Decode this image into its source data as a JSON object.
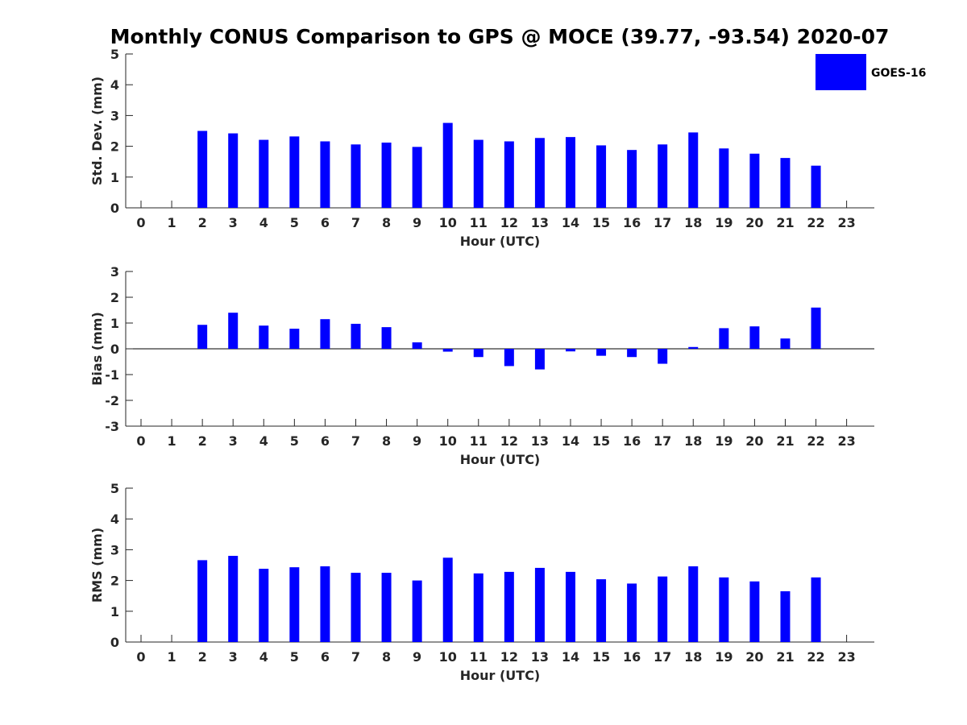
{
  "chart_data": {
    "title": "Monthly CONUS Comparison to GPS @ MOCE (39.77, -93.54) 2020-07",
    "bar_color": "#0000ff",
    "legend": {
      "label": "GOES-16",
      "placement": "top-right"
    },
    "panels": [
      {
        "type": "bar",
        "ylabel": "Std. Dev. (mm)",
        "xlabel": "Hour (UTC)",
        "ylim": [
          0,
          5
        ],
        "yticks": [
          0,
          1,
          2,
          3,
          4,
          5
        ],
        "categories": [
          0,
          1,
          2,
          3,
          4,
          5,
          6,
          7,
          8,
          9,
          10,
          11,
          12,
          13,
          14,
          15,
          16,
          17,
          18,
          19,
          20,
          21,
          22,
          23
        ],
        "series": [
          {
            "name": "GOES-16",
            "values": [
              null,
              null,
              2.5,
              2.42,
              2.21,
              2.32,
              2.16,
              2.06,
              2.12,
              1.98,
              2.76,
              2.21,
              2.16,
              2.27,
              2.3,
              2.03,
              1.88,
              2.06,
              2.45,
              1.93,
              1.76,
              1.62,
              1.37,
              null
            ]
          }
        ],
        "zero_line": false
      },
      {
        "type": "bar",
        "ylabel": "Bias (mm)",
        "xlabel": "Hour (UTC)",
        "ylim": [
          -3,
          3
        ],
        "yticks": [
          -3,
          -2,
          -1,
          0,
          1,
          2,
          3
        ],
        "categories": [
          0,
          1,
          2,
          3,
          4,
          5,
          6,
          7,
          8,
          9,
          10,
          11,
          12,
          13,
          14,
          15,
          16,
          17,
          18,
          19,
          20,
          21,
          22,
          23
        ],
        "series": [
          {
            "name": "GOES-16",
            "values": [
              null,
              null,
              0.93,
              1.4,
              0.9,
              0.78,
              1.15,
              0.97,
              0.84,
              0.25,
              -0.11,
              -0.32,
              -0.67,
              -0.8,
              -0.1,
              -0.27,
              -0.32,
              -0.58,
              0.07,
              0.8,
              0.87,
              0.4,
              1.6,
              null
            ]
          }
        ],
        "zero_line": true
      },
      {
        "type": "bar",
        "ylabel": "RMS (mm)",
        "xlabel": "Hour (UTC)",
        "ylim": [
          0,
          5
        ],
        "yticks": [
          0,
          1,
          2,
          3,
          4,
          5
        ],
        "categories": [
          0,
          1,
          2,
          3,
          4,
          5,
          6,
          7,
          8,
          9,
          10,
          11,
          12,
          13,
          14,
          15,
          16,
          17,
          18,
          19,
          20,
          21,
          22,
          23
        ],
        "series": [
          {
            "name": "GOES-16",
            "values": [
              null,
              null,
              2.66,
              2.8,
              2.38,
              2.43,
              2.46,
              2.25,
              2.25,
              2.0,
              2.74,
              2.23,
              2.28,
              2.41,
              2.28,
              2.04,
              1.9,
              2.13,
              2.46,
              2.1,
              1.97,
              1.65,
              2.1,
              null
            ]
          }
        ],
        "zero_line": false
      }
    ]
  }
}
